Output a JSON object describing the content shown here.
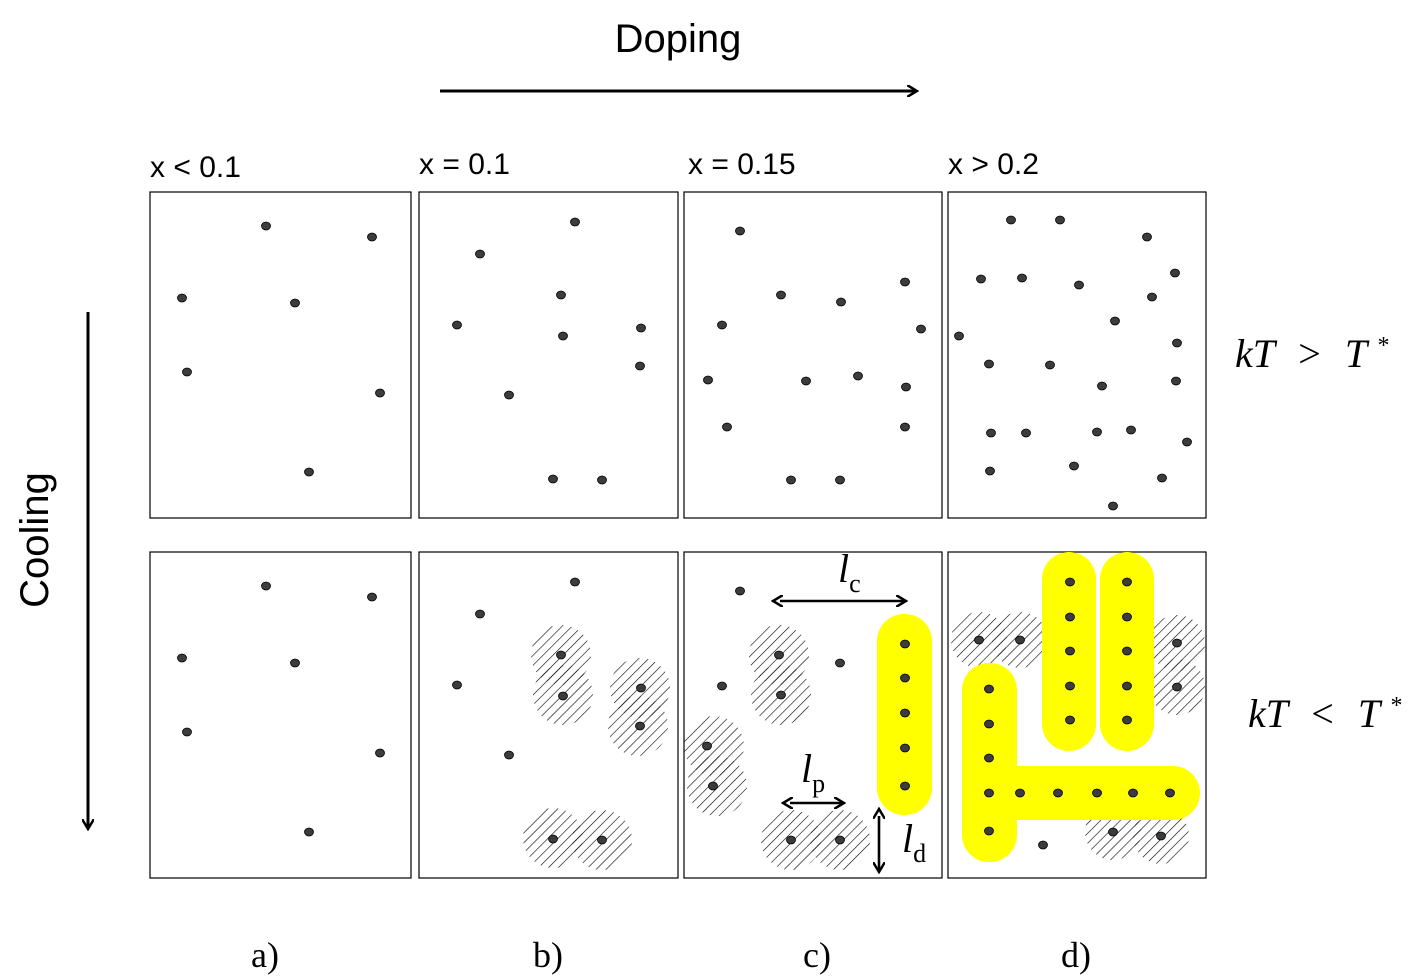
{
  "title_doping": "Doping",
  "title_cooling": "Cooling",
  "columns": [
    {
      "header": "x < 0.1",
      "caption": "a)"
    },
    {
      "header": "x = 0.1",
      "caption": "b)"
    },
    {
      "header": "x = 0.15",
      "caption": "c)"
    },
    {
      "header": "x > 0.2",
      "caption": "d)"
    }
  ],
  "rows": [
    {
      "condition_lhs": "kT",
      "condition_op": ">",
      "condition_rhs": "T",
      "condition_sup": "*"
    },
    {
      "condition_lhs": "kT",
      "condition_op": "<",
      "condition_rhs": "T",
      "condition_sup": "*"
    }
  ],
  "lengths": {
    "lc": {
      "symbol": "l",
      "sub": "c"
    },
    "lp": {
      "symbol": "l",
      "sub": "p"
    },
    "ld": {
      "symbol": "l",
      "sub": "d"
    }
  },
  "colors": {
    "stripe_region": "#ffff00",
    "hatch": "#000000",
    "dot": "#3c3c3c"
  }
}
